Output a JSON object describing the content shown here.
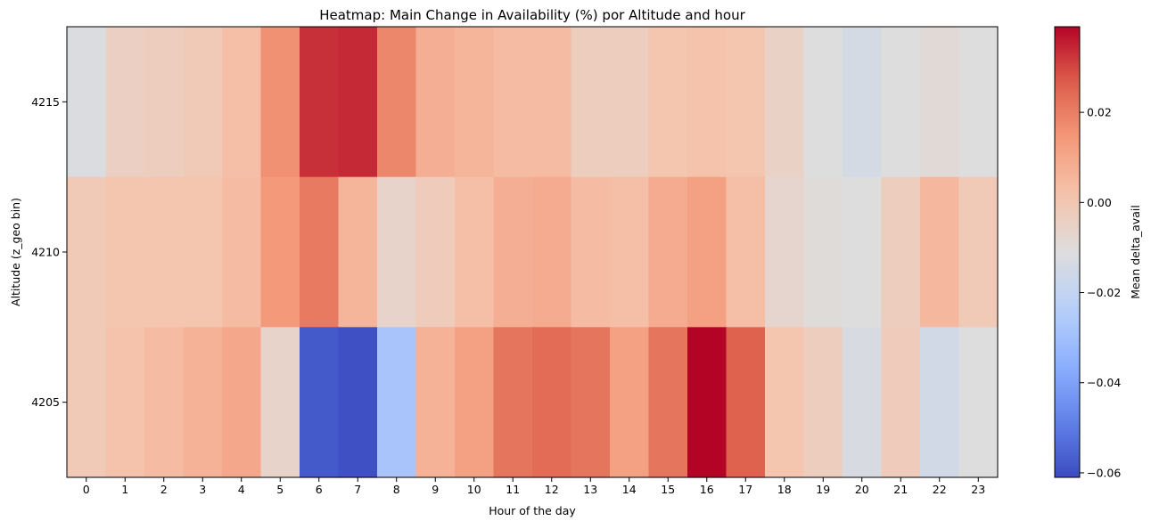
{
  "chart_data": {
    "type": "heatmap",
    "title": "Heatmap: Main Change in Availability (%) por Altitude and hour",
    "xlabel": "Hour of the day",
    "ylabel": "Altitude (z_geo bin)",
    "x_categories": [
      "0",
      "1",
      "2",
      "3",
      "4",
      "5",
      "6",
      "7",
      "8",
      "9",
      "10",
      "11",
      "12",
      "13",
      "14",
      "15",
      "16",
      "17",
      "18",
      "19",
      "20",
      "21",
      "22",
      "23"
    ],
    "y_categories": [
      "4215",
      "4210",
      "4205"
    ],
    "values": [
      [
        -0.012,
        -0.004,
        -0.003,
        -0.001,
        0.003,
        0.016,
        0.033,
        0.034,
        0.018,
        0.008,
        0.006,
        0.004,
        0.004,
        -0.003,
        -0.003,
        0.001,
        0.002,
        0.001,
        -0.005,
        -0.011,
        -0.014,
        -0.011,
        -0.009,
        -0.011
      ],
      [
        -0.001,
        0.001,
        0.001,
        0.001,
        0.004,
        0.014,
        0.021,
        0.006,
        -0.006,
        -0.002,
        0.003,
        0.008,
        0.009,
        0.004,
        0.003,
        0.009,
        0.012,
        0.003,
        -0.007,
        -0.01,
        -0.011,
        -0.003,
        0.005,
        -0.001
      ],
      [
        -0.001,
        0.002,
        0.004,
        0.007,
        0.01,
        -0.006,
        -0.058,
        -0.06,
        -0.028,
        0.007,
        0.012,
        0.022,
        0.024,
        0.022,
        0.012,
        0.022,
        0.039,
        0.026,
        0.001,
        -0.003,
        -0.013,
        -0.002,
        -0.015,
        -0.011
      ]
    ],
    "colorbar": {
      "label": "Mean delta_avail",
      "min": -0.061,
      "max": 0.039,
      "ticks": [
        "0.02",
        "0.00",
        "−0.02",
        "−0.04",
        "−0.06"
      ],
      "tick_values": [
        0.02,
        0.0,
        -0.02,
        -0.04,
        -0.06
      ],
      "colormap": "coolwarm"
    }
  }
}
